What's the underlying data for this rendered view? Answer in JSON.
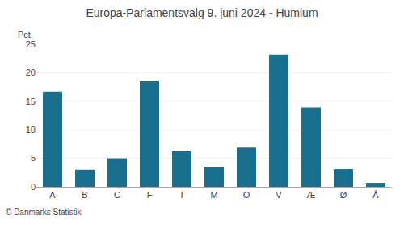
{
  "chart_data": {
    "type": "bar",
    "title": "Europa-Parlamentsvalg 9. juni 2024 - Humlum",
    "categories": [
      "A",
      "B",
      "C",
      "F",
      "I",
      "M",
      "O",
      "V",
      "Æ",
      "Ø",
      "Å"
    ],
    "values": [
      16.7,
      3.0,
      5.0,
      18.5,
      6.2,
      3.5,
      6.9,
      23.2,
      13.9,
      3.1,
      0.7
    ],
    "color": "#1a6e8e",
    "ylabel": "Pct.",
    "annotations": [
      "© Danmarks Statistik"
    ],
    "ylim": [
      0,
      25
    ],
    "yticks": [
      0,
      5,
      10,
      15,
      20,
      25
    ],
    "grid": true
  }
}
